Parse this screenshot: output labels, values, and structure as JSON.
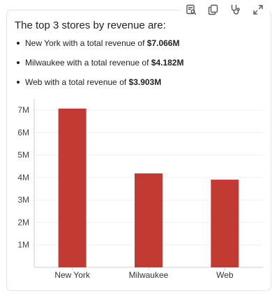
{
  "toolbar": {
    "icons": [
      "inspect-query-icon",
      "copy-icon",
      "stethoscope-icon",
      "expand-icon"
    ]
  },
  "answer": {
    "heading": "The top 3 stores by revenue are:",
    "items": [
      {
        "prefix": "New York with a total revenue of ",
        "value": "$7.066M"
      },
      {
        "prefix": "Milwaukee with a total revenue of ",
        "value": "$4.182M"
      },
      {
        "prefix": "Web with a total revenue of ",
        "value": "$3.903M"
      }
    ]
  },
  "chart_data": {
    "type": "bar",
    "title": "",
    "xlabel": "",
    "ylabel": "",
    "categories": [
      "New York",
      "Milwaukee",
      "Web"
    ],
    "values": [
      7066000,
      4182000,
      3903000
    ],
    "ylim": [
      0,
      7500000
    ],
    "yticks": [
      {
        "value": 1000000,
        "label": "1M"
      },
      {
        "value": 2000000,
        "label": "2M"
      },
      {
        "value": 3000000,
        "label": "3M"
      },
      {
        "value": 4000000,
        "label": "4M"
      },
      {
        "value": 5000000,
        "label": "5M"
      },
      {
        "value": 6000000,
        "label": "6M"
      },
      {
        "value": 7000000,
        "label": "7M"
      }
    ],
    "grid": true,
    "bar_color": "#c23b32",
    "grid_color": "#efefef",
    "axis_color": "#cccccc"
  }
}
